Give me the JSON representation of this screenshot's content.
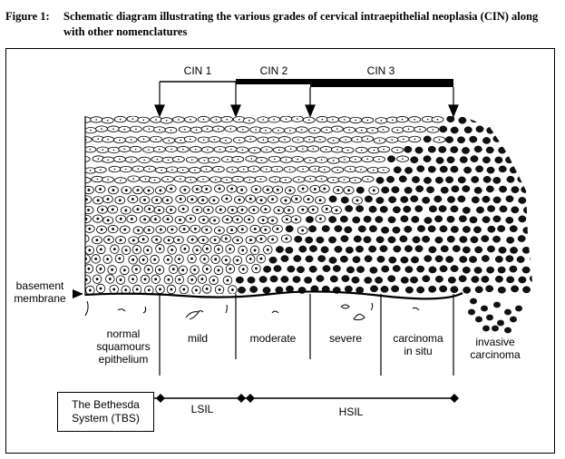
{
  "figure": {
    "label": "Figure 1:",
    "caption": "Schematic diagram illustrating the various grades of cervical intraepithelial neoplasia (CIN) along with other nomenclatures"
  },
  "cin": [
    "CIN 1",
    "CIN 2",
    "CIN 3"
  ],
  "side_label": "basement membrane",
  "stages": [
    "normal squamours epithelium",
    "mild",
    "moderate",
    "severe",
    "carcinoma in situ",
    "invasive carcinoma"
  ],
  "tbs": {
    "box": "The Bethesda System (TBS)",
    "lsil": "LSIL",
    "hsil": "HSIL"
  }
}
